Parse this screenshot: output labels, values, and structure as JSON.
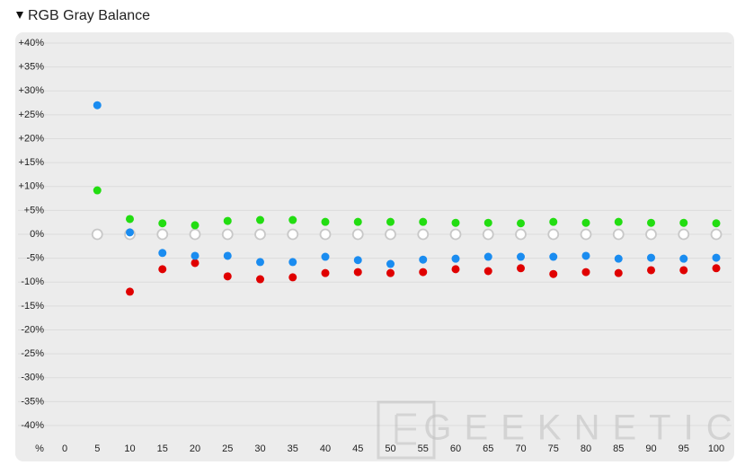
{
  "chart_data": {
    "type": "scatter",
    "title": "RGB Gray Balance",
    "x_label": "%",
    "watermark": "GEEKNETIC",
    "x": [
      5,
      10,
      15,
      20,
      25,
      30,
      35,
      40,
      45,
      50,
      55,
      60,
      65,
      70,
      75,
      80,
      85,
      90,
      95,
      100
    ],
    "xlim": [
      0,
      100
    ],
    "xticks": [
      0,
      5,
      10,
      15,
      20,
      25,
      30,
      35,
      40,
      45,
      50,
      55,
      60,
      65,
      70,
      75,
      80,
      85,
      90,
      95,
      100
    ],
    "ylim": [
      -40,
      40
    ],
    "yticks": [
      {
        "value": 40,
        "label": "+40%"
      },
      {
        "value": 35,
        "label": "+35%"
      },
      {
        "value": 30,
        "label": "+30%"
      },
      {
        "value": 25,
        "label": "+25%"
      },
      {
        "value": 20,
        "label": "+20%"
      },
      {
        "value": 15,
        "label": "+15%"
      },
      {
        "value": 10,
        "label": "+10%"
      },
      {
        "value": 5,
        "label": "+5%"
      },
      {
        "value": 0,
        "label": "0%"
      },
      {
        "value": -5,
        "label": "-5%"
      },
      {
        "value": -10,
        "label": "-10%"
      },
      {
        "value": -15,
        "label": "-15%"
      },
      {
        "value": -20,
        "label": "-20%"
      },
      {
        "value": -25,
        "label": "-25%"
      },
      {
        "value": -30,
        "label": "-30%"
      },
      {
        "value": -35,
        "label": "-35%"
      },
      {
        "value": -40,
        "label": "-40%"
      }
    ],
    "grid": true,
    "series": [
      {
        "color": "#ffffff",
        "stroke": "#c8c8c8",
        "values": [
          0,
          0,
          0,
          0,
          0,
          0,
          0,
          0,
          0,
          0,
          0,
          0,
          0,
          0,
          0,
          0,
          0,
          0,
          0,
          0
        ]
      },
      {
        "color": "#e00000",
        "values": [
          null,
          -12.0,
          -7.3,
          -6.0,
          -8.8,
          -9.4,
          -9.0,
          -8.1,
          -7.9,
          -8.1,
          -7.9,
          -7.3,
          -7.7,
          -7.1,
          -8.3,
          -7.9,
          -8.1,
          -7.5,
          -7.5,
          -7.1
        ]
      },
      {
        "color": "#1a8cf0",
        "values": [
          27.0,
          0.4,
          -3.9,
          -4.5,
          -4.5,
          -5.8,
          -5.8,
          -4.7,
          -5.4,
          -6.2,
          -5.3,
          -5.1,
          -4.7,
          -4.7,
          -4.7,
          -4.5,
          -5.1,
          -4.9,
          -5.1,
          -4.9
        ]
      },
      {
        "color": "#22dd11",
        "values": [
          9.2,
          3.2,
          2.3,
          1.9,
          2.8,
          3.0,
          3.0,
          2.6,
          2.6,
          2.6,
          2.6,
          2.4,
          2.4,
          2.3,
          2.6,
          2.4,
          2.6,
          2.4,
          2.4,
          2.3
        ]
      }
    ]
  }
}
